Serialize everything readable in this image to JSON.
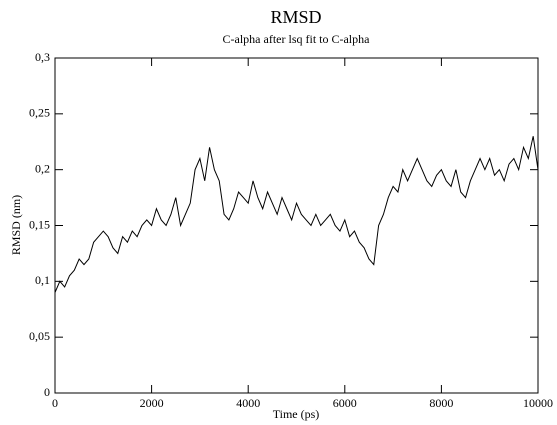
{
  "chart_data": {
    "type": "line",
    "title": "RMSD",
    "subtitle": "C-alpha after lsq fit to C-alpha",
    "x_label": "Time (ps)",
    "y_label": "RMSD (nm)",
    "x": [
      0,
      100,
      200,
      300,
      400,
      500,
      600,
      700,
      800,
      900,
      1000,
      1100,
      1200,
      1300,
      1400,
      1500,
      1600,
      1700,
      1800,
      1900,
      2000,
      2100,
      2200,
      2300,
      2400,
      2500,
      2600,
      2700,
      2800,
      2900,
      3000,
      3100,
      3200,
      3300,
      3400,
      3500,
      3600,
      3700,
      3800,
      3900,
      4000,
      4100,
      4200,
      4300,
      4400,
      4500,
      4600,
      4700,
      4800,
      4900,
      5000,
      5100,
      5200,
      5300,
      5400,
      5500,
      5600,
      5700,
      5800,
      5900,
      6000,
      6100,
      6200,
      6300,
      6400,
      6500,
      6600,
      6700,
      6800,
      6900,
      7000,
      7100,
      7200,
      7300,
      7400,
      7500,
      7600,
      7700,
      7800,
      7900,
      8000,
      8100,
      8200,
      8300,
      8400,
      8500,
      8600,
      8700,
      8800,
      8900,
      9000,
      9100,
      9200,
      9300,
      9400,
      9500,
      9600,
      9700,
      9800,
      9900,
      10000
    ],
    "series": [
      {
        "color": "#000000",
        "values": [
          0.09,
          0.1,
          0.095,
          0.105,
          0.11,
          0.12,
          0.115,
          0.12,
          0.135,
          0.14,
          0.145,
          0.14,
          0.13,
          0.125,
          0.14,
          0.135,
          0.145,
          0.14,
          0.15,
          0.155,
          0.15,
          0.165,
          0.155,
          0.15,
          0.16,
          0.175,
          0.15,
          0.16,
          0.17,
          0.2,
          0.21,
          0.19,
          0.22,
          0.2,
          0.19,
          0.16,
          0.155,
          0.165,
          0.18,
          0.175,
          0.17,
          0.19,
          0.175,
          0.165,
          0.18,
          0.17,
          0.16,
          0.175,
          0.165,
          0.155,
          0.17,
          0.16,
          0.155,
          0.15,
          0.16,
          0.15,
          0.155,
          0.16,
          0.15,
          0.145,
          0.155,
          0.14,
          0.145,
          0.135,
          0.13,
          0.12,
          0.115,
          0.15,
          0.16,
          0.175,
          0.185,
          0.18,
          0.2,
          0.19,
          0.2,
          0.21,
          0.2,
          0.19,
          0.185,
          0.195,
          0.2,
          0.19,
          0.185,
          0.2,
          0.18,
          0.175,
          0.19,
          0.2,
          0.21,
          0.2,
          0.21,
          0.195,
          0.2,
          0.19,
          0.205,
          0.21,
          0.2,
          0.22,
          0.21,
          0.23,
          0.2
        ]
      }
    ],
    "xlim": [
      0,
      10000
    ],
    "xticks": [
      0,
      2000,
      4000,
      6000,
      8000,
      10000
    ],
    "ylim": [
      0,
      0.3
    ],
    "yticks": [
      {
        "value": 0,
        "label": "0"
      },
      {
        "value": 0.05,
        "label": "0,05"
      },
      {
        "value": 0.1,
        "label": "0,1"
      },
      {
        "value": 0.15,
        "label": "0,15"
      },
      {
        "value": 0.2,
        "label": "0,2"
      },
      {
        "value": 0.25,
        "label": "0,25"
      },
      {
        "value": 0.3,
        "label": "0,3"
      }
    ]
  }
}
